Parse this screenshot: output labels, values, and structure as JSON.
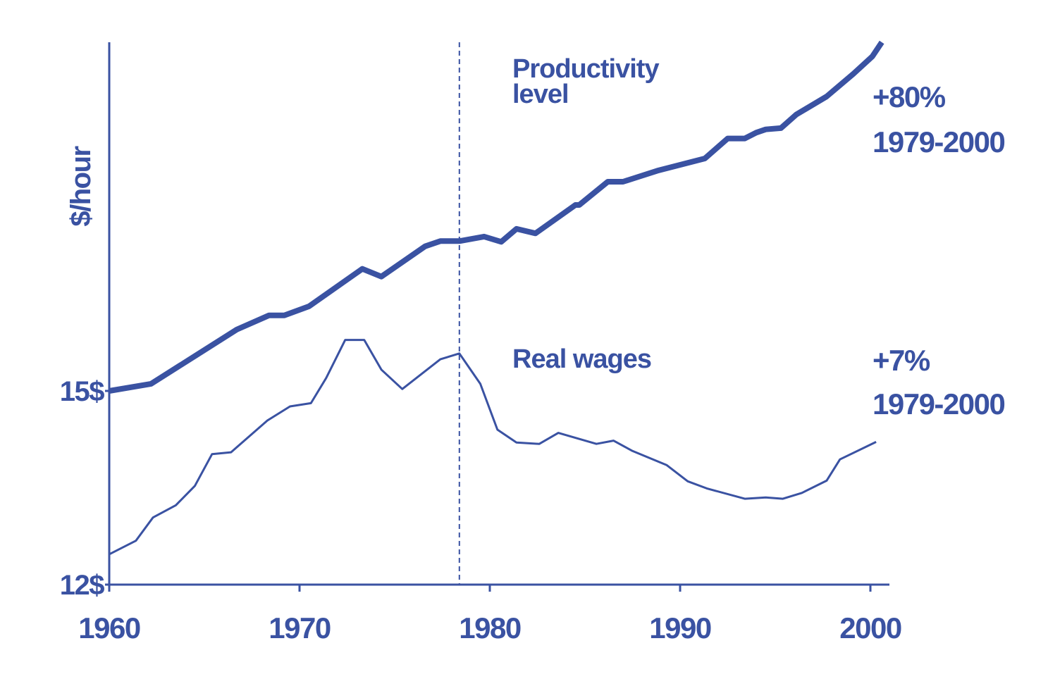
{
  "chart_data": {
    "type": "line",
    "y_label": "$/hour",
    "xlim": [
      1960,
      2001
    ],
    "xticks": [
      1960,
      1970,
      1980,
      1990,
      2000
    ],
    "ylim": [
      12,
      20.4
    ],
    "yticks": [
      {
        "value": 12,
        "label": "12$"
      },
      {
        "value": 15,
        "label": "15$"
      }
    ],
    "grid": false,
    "vline": 1978.4,
    "series": [
      {
        "name": "Productivity level",
        "color": "#3a52a2",
        "width": 8,
        "x": [
          1960,
          1962.2,
          1966.7,
          1968.4,
          1969.2,
          1970.5,
          1973.3,
          1974.3,
          1976.6,
          1977.4,
          1978.4,
          1979.7,
          1980.6,
          1981.4,
          1982.4,
          1984.5,
          1984.7,
          1986.2,
          1987.0,
          1988.8,
          1991.3,
          1992.5,
          1993.4,
          1994.0,
          1994.5,
          1995.3,
          1996.1,
          1997.7,
          1999.1,
          2000.1,
          2000.6
        ],
        "values": [
          15.0,
          15.11,
          15.95,
          16.17,
          16.17,
          16.31,
          16.89,
          16.77,
          17.24,
          17.32,
          17.32,
          17.39,
          17.31,
          17.51,
          17.44,
          17.88,
          17.88,
          18.24,
          18.24,
          18.41,
          18.6,
          18.91,
          18.91,
          19.0,
          19.05,
          19.07,
          19.28,
          19.56,
          19.91,
          20.18,
          20.4
        ]
      },
      {
        "name": "Real wages",
        "color": "#3a52a2",
        "width": 3,
        "x": [
          1960,
          1961.4,
          1962.3,
          1963.5,
          1964.5,
          1965.4,
          1966.4,
          1968.3,
          1969.5,
          1970.6,
          1971.4,
          1972.4,
          1973.4,
          1974.3,
          1975.4,
          1977.4,
          1978.4,
          1979.5,
          1980.4,
          1981.4,
          1982.6,
          1983.6,
          1985.6,
          1986.5,
          1987.5,
          1989.3,
          1990.4,
          1991.4,
          1993.4,
          1994.5,
          1995.4,
          1996.4,
          1997.7,
          1998.4,
          2000.3
        ],
        "values": [
          12.47,
          12.68,
          13.04,
          13.23,
          13.53,
          14.02,
          14.05,
          14.54,
          14.76,
          14.81,
          15.2,
          15.79,
          15.79,
          15.33,
          15.03,
          15.49,
          15.58,
          15.11,
          14.4,
          14.2,
          14.18,
          14.35,
          14.18,
          14.23,
          14.07,
          13.85,
          13.6,
          13.49,
          13.33,
          13.35,
          13.33,
          13.42,
          13.61,
          13.94,
          14.21
        ]
      }
    ],
    "annotations": [
      {
        "text": "+80%"
      },
      {
        "text": "1979-2000"
      },
      {
        "text": "+7%"
      },
      {
        "text": "1979-2000"
      }
    ]
  }
}
